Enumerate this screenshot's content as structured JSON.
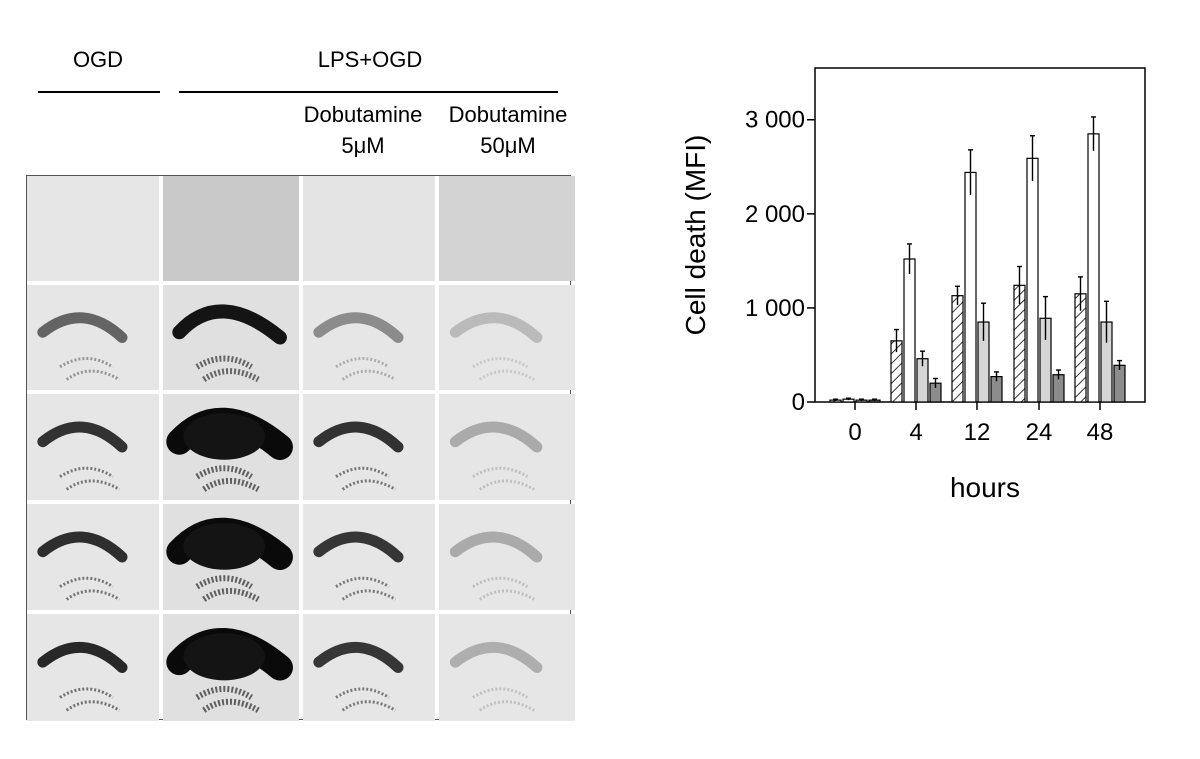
{
  "figure": {
    "panel_left": {
      "header_ogd": "OGD",
      "header_lps": "LPS+OGD",
      "col3_line1": "Dobutamine",
      "col3_line2": "5μM",
      "col4_line1": "Dobutamine",
      "col4_line2": "50μM",
      "columns": [
        "OGD",
        "LPS+OGD",
        "Dobutamine 5μM",
        "Dobutamine 50μM"
      ],
      "image_grid": {
        "rows": 5,
        "cols": 4,
        "intensity": [
          [
            0.0,
            0.0,
            0.0,
            0.0
          ],
          [
            0.55,
            0.95,
            0.35,
            0.12
          ],
          [
            0.8,
            1.0,
            0.8,
            0.2
          ],
          [
            0.82,
            1.0,
            0.78,
            0.2
          ],
          [
            0.85,
            1.0,
            0.78,
            0.18
          ]
        ],
        "background": [
          [
            "#e6e6e6",
            "#c9c9c9",
            "#e4e4e4",
            "#d3d3d3"
          ],
          [
            "#e6e6e6",
            "#e0e0e0",
            "#e6e6e6",
            "#e6e6e6"
          ],
          [
            "#e6e6e6",
            "#e0e0e0",
            "#e6e6e6",
            "#e6e6e6"
          ],
          [
            "#e6e6e6",
            "#e0e0e0",
            "#e6e6e6",
            "#e6e6e6"
          ],
          [
            "#e6e6e6",
            "#e0e0e0",
            "#e6e6e6",
            "#e6e6e6"
          ]
        ]
      }
    }
  },
  "chart_data": {
    "type": "bar",
    "xlabel": "hours",
    "ylabel": "Cell death (MFI)",
    "categories": [
      "0",
      "4",
      "12",
      "24",
      "48"
    ],
    "ylim": [
      0,
      3000
    ],
    "yticks": [
      0,
      1000,
      2000,
      3000
    ],
    "ytick_labels": [
      "0",
      "1 000",
      "2 000",
      "3 000"
    ],
    "series": [
      {
        "fill": "hatched",
        "values": [
          20,
          650,
          1130,
          1240,
          1150
        ],
        "errors": [
          10,
          120,
          100,
          200,
          180
        ]
      },
      {
        "fill": "#ffffff",
        "values": [
          30,
          1520,
          2440,
          2590,
          2850
        ],
        "errors": [
          10,
          160,
          240,
          240,
          180
        ]
      },
      {
        "fill": "#d6d6d6",
        "values": [
          20,
          460,
          850,
          890,
          850
        ],
        "errors": [
          10,
          80,
          200,
          230,
          220
        ]
      },
      {
        "fill": "#8c8c8c",
        "values": [
          20,
          200,
          270,
          290,
          390
        ],
        "errors": [
          10,
          50,
          50,
          50,
          50
        ]
      }
    ]
  }
}
